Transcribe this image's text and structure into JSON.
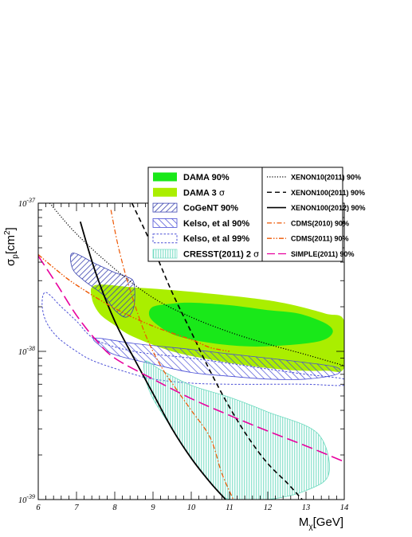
{
  "chart_data": {
    "type": "area",
    "title": "",
    "xlabel": "Mχ[GeV]",
    "ylabel": "σp[cm²]",
    "xlabel_parts": {
      "main": "M",
      "sub": "χ",
      "rest": "[GeV]"
    },
    "ylabel_parts": {
      "main": "σ",
      "sub": "p",
      "rest": "[cm",
      "sup": "2",
      "end": "]"
    },
    "x_scale": "linear",
    "y_scale": "log",
    "xlim": [
      6,
      14
    ],
    "ylim": [
      1e-39,
      1e-37
    ],
    "x_ticks": [
      "6",
      "7",
      "8",
      "9",
      "10",
      "11",
      "12",
      "13",
      "14"
    ],
    "y_ticks": [
      {
        "value": 1e-39,
        "base": "10",
        "exp": "-39"
      },
      {
        "value": 1e-38,
        "base": "10",
        "exp": "-38"
      },
      {
        "value": 1e-37,
        "base": "10",
        "exp": "-37"
      }
    ],
    "grid": false,
    "legend_placement": "top-right",
    "colors": {
      "dama90": "#19e819",
      "dama3s": "#aaee00",
      "cogent": "#3b44b0",
      "kelso": "#4a4fd6",
      "cresst": "#5cd6b8",
      "xenon": "#000000",
      "cdms": "#ee5500",
      "simple": "#e8009e"
    },
    "regions": [
      {
        "name": "DAMA 3 σ",
        "points": [
          [
            7.5,
            2.8e-38
          ],
          [
            8.5,
            2.7e-38
          ],
          [
            9.8,
            2.55e-38
          ],
          [
            11.5,
            2.3e-38
          ],
          [
            12.5,
            2.1e-38
          ],
          [
            13.5,
            1.8e-38
          ],
          [
            14,
            1.6e-38
          ],
          [
            14,
            7.8e-39
          ],
          [
            13.5,
            7.4e-39
          ],
          [
            12.5,
            7.5e-39
          ],
          [
            11.5,
            8e-39
          ],
          [
            10.5,
            8.8e-39
          ],
          [
            9.5,
            1e-38
          ],
          [
            8.5,
            1.25e-38
          ],
          [
            8,
            1.5e-38
          ],
          [
            7.6,
            1.8e-38
          ],
          [
            7.4,
            2.3e-38
          ]
        ]
      },
      {
        "name": "DAMA 90%",
        "points": [
          [
            9,
            2e-38
          ],
          [
            9.5,
            2.1e-38
          ],
          [
            10,
            2.13e-38
          ],
          [
            11,
            2.05e-38
          ],
          [
            12,
            1.9e-38
          ],
          [
            12.8,
            1.8e-38
          ],
          [
            13.5,
            1.55e-38
          ],
          [
            13.7,
            1.35e-38
          ],
          [
            13.4,
            1.18e-38
          ],
          [
            12.5,
            1.1e-38
          ],
          [
            11.5,
            1.08e-38
          ],
          [
            10.5,
            1.14e-38
          ],
          [
            9.6,
            1.28e-38
          ],
          [
            9.1,
            1.52e-38
          ],
          [
            8.9,
            1.75e-38
          ]
        ]
      },
      {
        "name": "CoGeNT 90%",
        "points": [
          [
            6.9,
            4.6e-38
          ],
          [
            7.5,
            3.9e-38
          ],
          [
            8,
            3.4e-38
          ],
          [
            8.3,
            3.2e-38
          ],
          [
            8.5,
            2.9e-38
          ],
          [
            8.5,
            2e-38
          ],
          [
            8.3,
            1.7e-38
          ],
          [
            8,
            1.9e-38
          ],
          [
            7.7,
            2.4e-38
          ],
          [
            7.2,
            3e-38
          ],
          [
            6.9,
            3.6e-38
          ]
        ]
      },
      {
        "name": "Kelso, et al 90%",
        "points": [
          [
            7.5,
            1.23e-38
          ],
          [
            8.5,
            1.13e-38
          ],
          [
            10,
            1.03e-38
          ],
          [
            11,
            9.6e-39
          ],
          [
            12,
            9e-39
          ],
          [
            13,
            8.4e-39
          ],
          [
            13.8,
            7.8e-39
          ],
          [
            13.8,
            7e-39
          ],
          [
            13,
            6.5e-39
          ],
          [
            12,
            6.5e-39
          ],
          [
            11,
            6.8e-39
          ],
          [
            10,
            7.2e-39
          ],
          [
            9,
            8.2e-39
          ],
          [
            8,
            9.5e-39
          ],
          [
            7.6,
            1.1e-38
          ]
        ]
      },
      {
        "name": "Kelso, et al 99%",
        "points": [
          [
            6.2,
            2.5e-38
          ],
          [
            6.6,
            2e-38
          ],
          [
            7,
            1.6e-38
          ],
          [
            7.5,
            1.2e-38
          ],
          [
            8.5,
            1e-38
          ],
          [
            10,
            9e-39
          ],
          [
            11,
            8.3e-39
          ],
          [
            12,
            7.6e-39
          ],
          [
            13,
            7e-39
          ],
          [
            14,
            6.5e-39
          ],
          [
            14,
            5.9e-39
          ],
          [
            13,
            6e-39
          ],
          [
            12,
            6e-39
          ],
          [
            11,
            6e-39
          ],
          [
            10,
            6.1e-39
          ],
          [
            9,
            6.5e-39
          ],
          [
            8.5,
            7e-39
          ],
          [
            7.5,
            8.5e-39
          ],
          [
            7,
            1e-38
          ],
          [
            6.5,
            1.25e-38
          ],
          [
            6.2,
            1.6e-38
          ],
          [
            6.1,
            2.1e-38
          ]
        ]
      },
      {
        "name": "CRESST(2011) 2 σ",
        "points": [
          [
            8.8,
            8.6e-39
          ],
          [
            9.2,
            7.5e-39
          ],
          [
            10,
            5.9e-39
          ],
          [
            11,
            4.9e-39
          ],
          [
            12,
            3.9e-39
          ],
          [
            13.3,
            2.8e-39
          ],
          [
            13.6,
            1.5e-39
          ],
          [
            13,
            1.15e-39
          ],
          [
            12,
            1e-39
          ],
          [
            11,
            1e-39
          ],
          [
            10.5,
            1.3e-39
          ],
          [
            10,
            1.9e-39
          ],
          [
            9.5,
            3e-39
          ],
          [
            9,
            4.8e-39
          ],
          [
            8.8,
            6.6e-39
          ]
        ]
      }
    ],
    "curves": [
      {
        "name": "XENON10(2011) 90%",
        "style": "dotted",
        "points": [
          [
            6.3,
            1e-37
          ],
          [
            7,
            6.2e-38
          ],
          [
            8,
            3.6e-38
          ],
          [
            9,
            2.3e-38
          ],
          [
            10,
            1.7e-38
          ],
          [
            11,
            1.35e-38
          ],
          [
            12,
            1.12e-38
          ],
          [
            13,
            9.5e-39
          ],
          [
            14,
            8e-39
          ]
        ]
      },
      {
        "name": "XENON100(2011) 90%",
        "style": "dashed",
        "points": [
          [
            8.45,
            1e-37
          ],
          [
            9,
            5e-38
          ],
          [
            9.5,
            2.5e-38
          ],
          [
            10,
            1.35e-38
          ],
          [
            10.5,
            7.3e-39
          ],
          [
            11,
            4.2e-39
          ],
          [
            11.5,
            2.6e-39
          ],
          [
            12,
            1.75e-39
          ],
          [
            12.5,
            1.3e-39
          ],
          [
            12.9,
            1e-39
          ]
        ]
      },
      {
        "name": "XENON100(2012) 90%",
        "style": "solid",
        "points": [
          [
            7.1,
            7.5e-38
          ],
          [
            7.5,
            3.4e-38
          ],
          [
            8,
            1.6e-38
          ],
          [
            8.5,
            9e-39
          ],
          [
            9,
            5.2e-39
          ],
          [
            9.5,
            3e-39
          ],
          [
            10,
            1.9e-39
          ],
          [
            10.5,
            1.3e-39
          ],
          [
            10.9,
            1e-39
          ]
        ]
      },
      {
        "name": "CDMS(2010) 90%",
        "style": "dashdot",
        "points": [
          [
            7.9,
            9e-38
          ],
          [
            8.1,
            5e-38
          ],
          [
            8.4,
            2.6e-38
          ],
          [
            8.8,
            1.3e-38
          ],
          [
            9.2,
            8e-39
          ],
          [
            9.6,
            5.6e-39
          ],
          [
            10,
            4e-39
          ],
          [
            10.5,
            2.6e-39
          ],
          [
            10.8,
            1.5e-39
          ],
          [
            11.1,
            1e-39
          ]
        ]
      },
      {
        "name": "CDMS(2011) 90%",
        "style": "dashdotdot",
        "points": [
          [
            6,
            4.5e-38
          ],
          [
            6.5,
            3.5e-38
          ],
          [
            7,
            2.8e-38
          ],
          [
            8,
            1.95e-38
          ],
          [
            9,
            1.48e-38
          ],
          [
            10,
            1.2e-38
          ],
          [
            10.5,
            1.06e-38
          ],
          [
            11,
            1e-38
          ]
        ]
      },
      {
        "name": "SIMPLE(2011) 90%",
        "style": "longdash",
        "points": [
          [
            6,
            4.4e-38
          ],
          [
            6.5,
            2.8e-38
          ],
          [
            7,
            1.75e-38
          ],
          [
            7.5,
            1.2e-38
          ],
          [
            8,
            9e-39
          ],
          [
            9,
            6.5e-39
          ],
          [
            10,
            4.8e-39
          ],
          [
            11,
            3.7e-39
          ],
          [
            12,
            2.9e-39
          ],
          [
            13,
            2.3e-39
          ],
          [
            14,
            1.8e-39
          ]
        ]
      }
    ],
    "legend": {
      "left": [
        {
          "label": "DAMA 90%",
          "kind": "dama90",
          "sigma": false
        },
        {
          "label": "DAMA 3 ",
          "kind": "dama3s",
          "sigma": true
        },
        {
          "label": "CoGeNT 90%",
          "kind": "cogent",
          "sigma": false
        },
        {
          "label": "Kelso, et al 90%",
          "kind": "kelso90",
          "sigma": false
        },
        {
          "label": "Kelso, et al 99%",
          "kind": "kelso99",
          "sigma": false
        },
        {
          "label": "CRESST(2011) 2 ",
          "kind": "cresst",
          "sigma": true
        }
      ],
      "right": [
        {
          "label": "XENON10(2011) 90%",
          "style": "dotted"
        },
        {
          "label": "XENON100(2011) 90%",
          "style": "dashed"
        },
        {
          "label": "XENON100(2012) 90%",
          "style": "solid"
        },
        {
          "label": "CDMS(2010) 90%",
          "style": "dashdot"
        },
        {
          "label": "CDMS(2011) 90%",
          "style": "dashdotdot"
        },
        {
          "label": "SIMPLE(2011) 90%",
          "style": "longdash"
        }
      ],
      "sigma_glyph": "σ"
    }
  }
}
